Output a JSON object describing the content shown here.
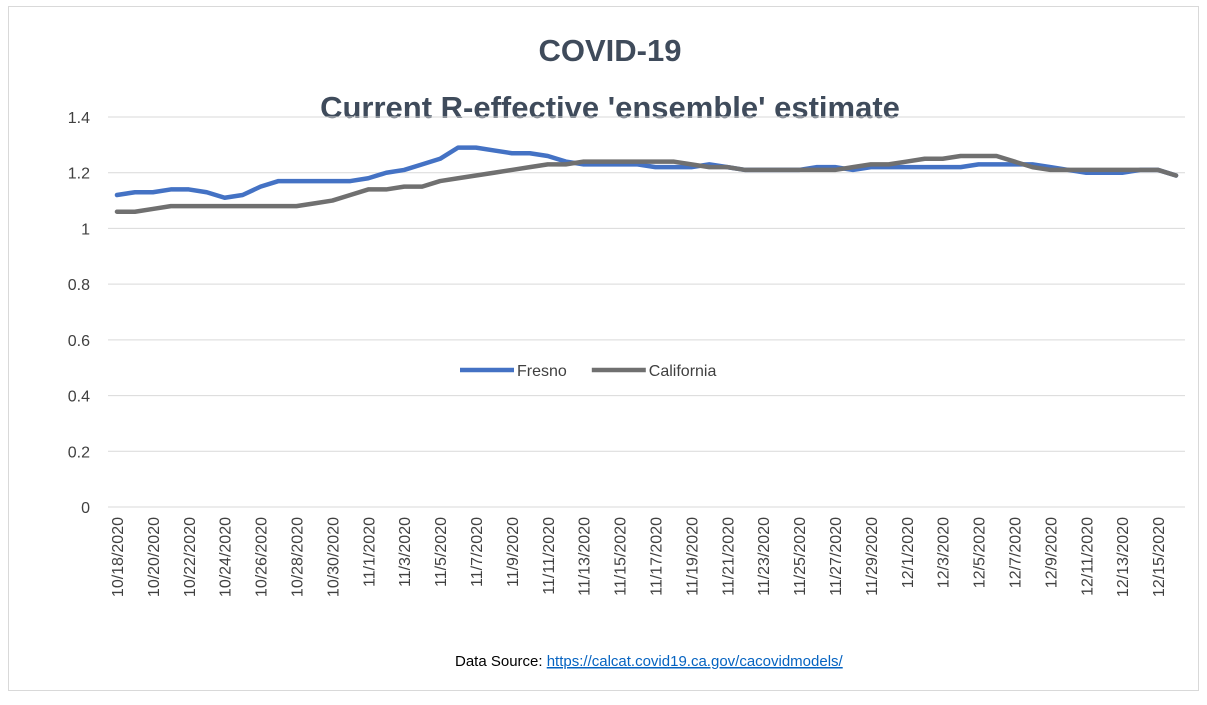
{
  "chart_data": {
    "type": "line",
    "title": [
      "COVID-19",
      "Current R-effective 'ensemble' estimate"
    ],
    "categories": [
      "10/18/2020",
      null,
      "10/20/2020",
      null,
      "10/22/2020",
      null,
      "10/24/2020",
      null,
      "10/26/2020",
      null,
      "10/28/2020",
      null,
      "10/30/2020",
      null,
      "11/1/2020",
      null,
      "11/3/2020",
      null,
      "11/5/2020",
      null,
      "11/7/2020",
      null,
      "11/9/2020",
      null,
      "11/11/2020",
      null,
      "11/13/2020",
      null,
      "11/15/2020",
      null,
      "11/17/2020",
      null,
      "11/19/2020",
      null,
      "11/21/2020",
      null,
      "11/23/2020",
      null,
      "11/25/2020",
      null,
      "11/27/2020",
      null,
      "11/29/2020",
      null,
      "12/1/2020",
      null,
      "12/3/2020",
      null,
      "12/5/2020",
      null,
      "12/7/2020",
      null,
      "12/9/2020",
      null,
      "12/11/2020",
      null,
      "12/13/2020",
      null,
      "12/15/2020",
      null
    ],
    "series": [
      {
        "name": "Fresno",
        "color": "#4472c4",
        "values": [
          1.12,
          1.13,
          1.13,
          1.14,
          1.14,
          1.13,
          1.11,
          1.12,
          1.15,
          1.17,
          1.17,
          1.17,
          1.17,
          1.17,
          1.18,
          1.2,
          1.21,
          1.23,
          1.25,
          1.29,
          1.29,
          1.28,
          1.27,
          1.27,
          1.26,
          1.24,
          1.23,
          1.23,
          1.23,
          1.23,
          1.22,
          1.22,
          1.22,
          1.23,
          1.22,
          1.21,
          1.21,
          1.21,
          1.21,
          1.22,
          1.22,
          1.21,
          1.22,
          1.22,
          1.22,
          1.22,
          1.22,
          1.22,
          1.23,
          1.23,
          1.23,
          1.23,
          1.22,
          1.21,
          1.2,
          1.2,
          1.2,
          1.21,
          1.21,
          1.19
        ]
      },
      {
        "name": "California",
        "color": "#707070",
        "values": [
          1.06,
          1.06,
          1.07,
          1.08,
          1.08,
          1.08,
          1.08,
          1.08,
          1.08,
          1.08,
          1.08,
          1.09,
          1.1,
          1.12,
          1.14,
          1.14,
          1.15,
          1.15,
          1.17,
          1.18,
          1.19,
          1.2,
          1.21,
          1.22,
          1.23,
          1.23,
          1.24,
          1.24,
          1.24,
          1.24,
          1.24,
          1.24,
          1.23,
          1.22,
          1.22,
          1.21,
          1.21,
          1.21,
          1.21,
          1.21,
          1.21,
          1.22,
          1.23,
          1.23,
          1.24,
          1.25,
          1.25,
          1.26,
          1.26,
          1.26,
          1.24,
          1.22,
          1.21,
          1.21,
          1.21,
          1.21,
          1.21,
          1.21,
          1.21,
          1.19
        ]
      }
    ],
    "ylim": [
      0,
      1.4
    ],
    "yticks": [
      0,
      0.2,
      0.4,
      0.6,
      0.8,
      1,
      1.2,
      1.4
    ],
    "grid": true,
    "legend": "center",
    "source_label": "Data Source:",
    "source_url": "https://calcat.covid19.ca.gov/cacovidmodels/"
  }
}
